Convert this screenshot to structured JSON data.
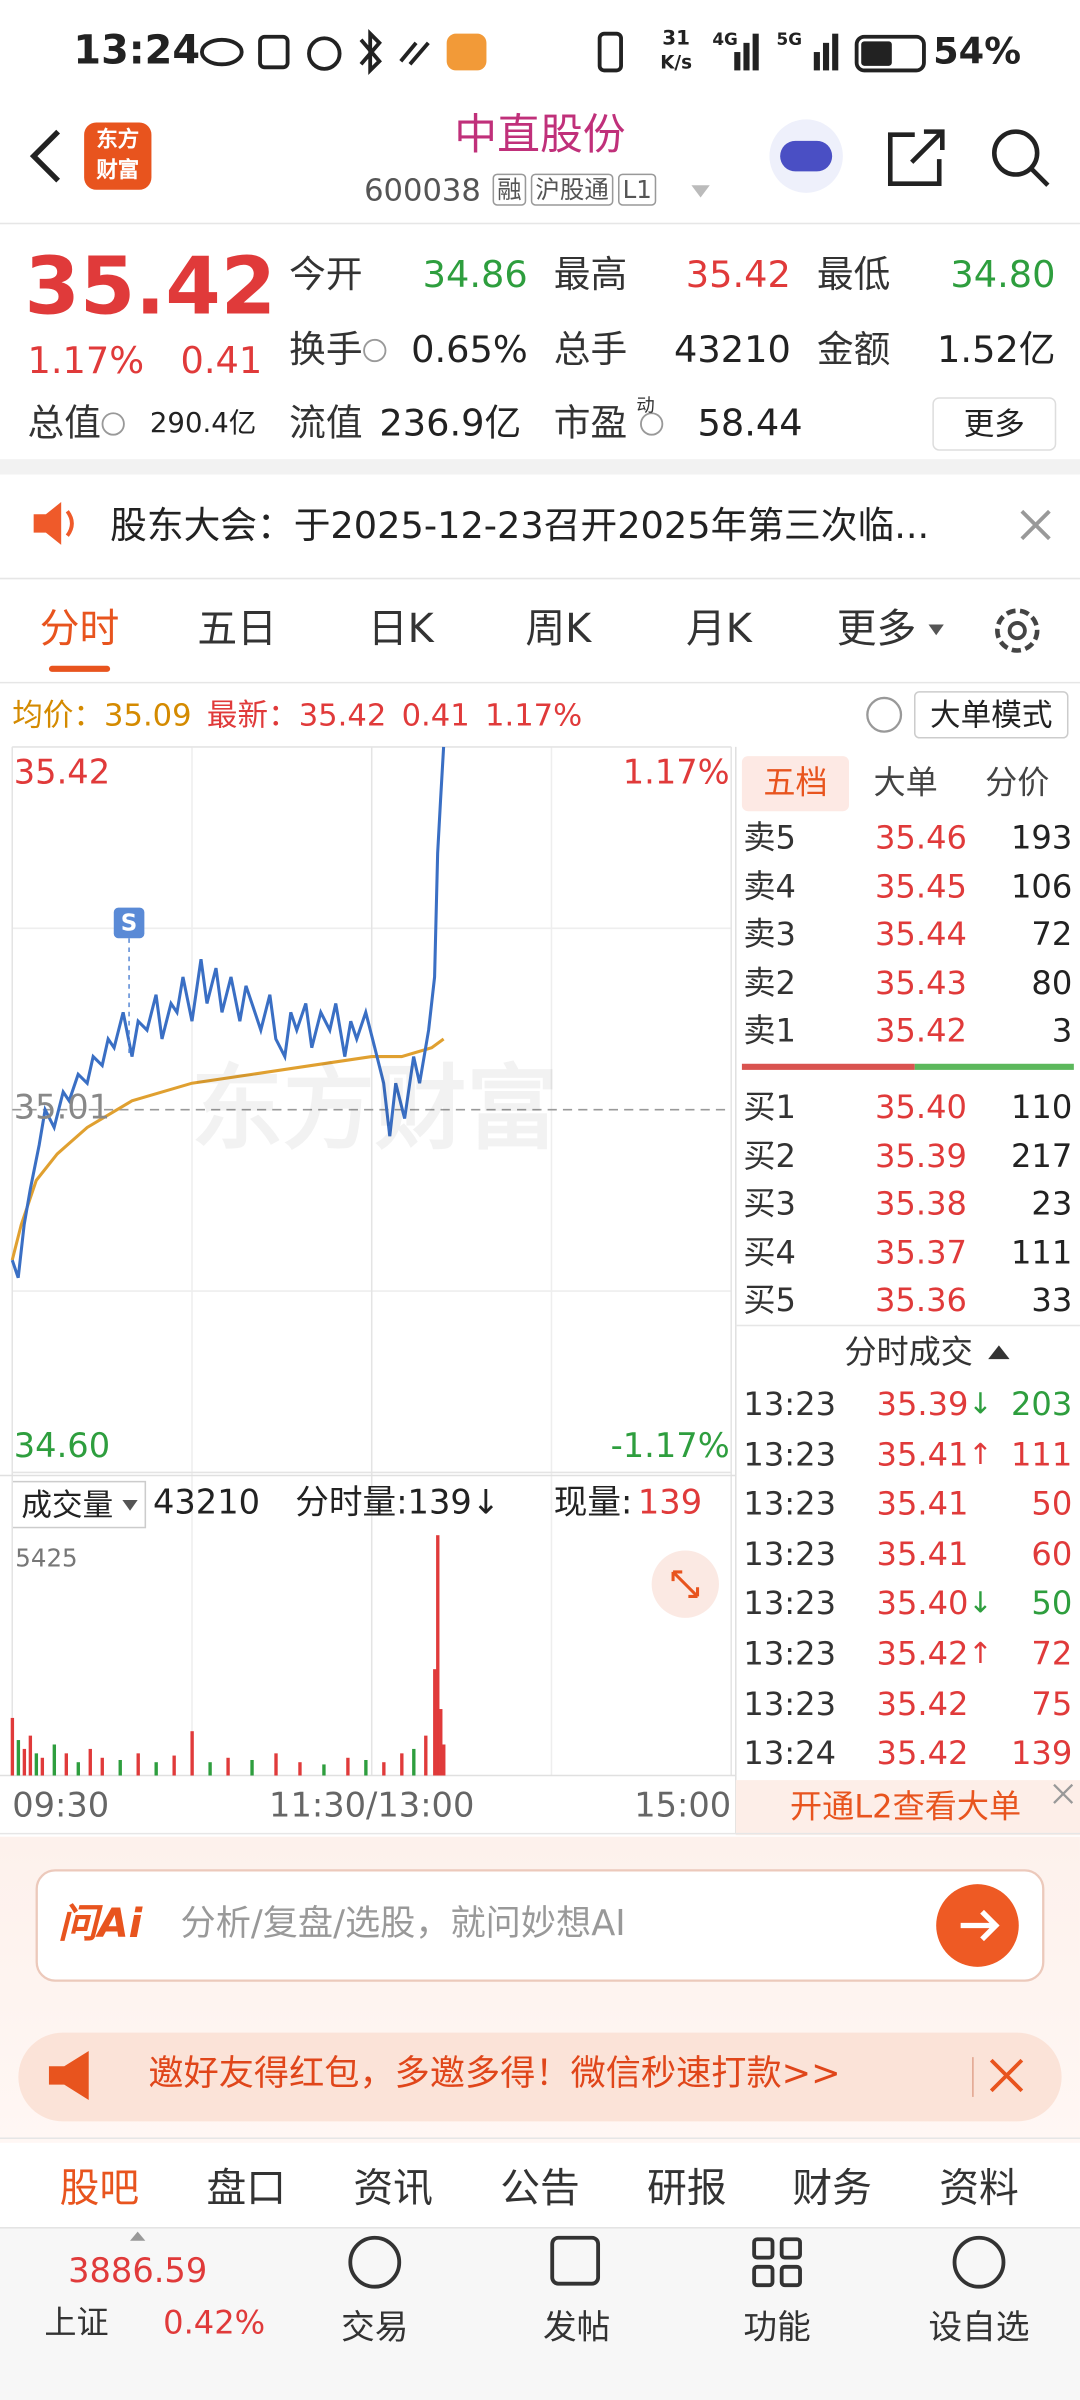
{
  "status_bar": {
    "time": "13:24",
    "speed": "31",
    "speed_unit": "K/s",
    "net_4g": "4G",
    "net_5g": "5G",
    "battery": "54%"
  },
  "header": {
    "logo": [
      "东方",
      "财富"
    ],
    "title": "中直股份",
    "code": "600038",
    "badges": [
      "融",
      "沪股通",
      "L1"
    ]
  },
  "quote": {
    "price": "35.42",
    "change_pct": "1.17%",
    "change": "0.41",
    "color": "#e03a3a",
    "rows": [
      [
        {
          "label": "今开",
          "value": "34.86",
          "color": "#2e9e3e"
        },
        {
          "label": "最高",
          "value": "35.42",
          "color": "#e03a3a"
        },
        {
          "label": "最低",
          "value": "34.80",
          "color": "#2e9e3e"
        }
      ],
      [
        {
          "label": "换手",
          "info": true,
          "value": "0.65%"
        },
        {
          "label": "总手",
          "value": "43210"
        },
        {
          "label": "金额",
          "value": "1.52亿"
        }
      ],
      [
        {
          "label": "总值",
          "info": true,
          "value": "290.4亿"
        },
        {
          "label": "流值",
          "value": "236.9亿"
        },
        {
          "label": "市盈",
          "sup": "动",
          "info": true,
          "value": "58.44"
        }
      ]
    ],
    "more": "更多"
  },
  "notice": {
    "text": "股东大会：于2025-12-23召开2025年第三次临..."
  },
  "tabs": {
    "items": [
      "分时",
      "五日",
      "日K",
      "周K",
      "月K",
      "更多"
    ],
    "active": 0
  },
  "info_bar": {
    "avg_label": "均价：",
    "avg": "35.09",
    "latest_label": "最新：",
    "latest": "35.42",
    "change": "0.41",
    "change_pct": "1.17%",
    "mode": "大单模式"
  },
  "intraday": {
    "watermark": "东方财富",
    "xlim": [
      0,
      240
    ],
    "xticks": [
      {
        "value": 0,
        "label": "09:30"
      },
      {
        "value": 120,
        "label": "11:30/13:00"
      },
      {
        "value": 240,
        "label": "15:00"
      }
    ],
    "ylim": [
      34.6,
      35.42
    ],
    "yticks": [
      {
        "value": 34.6,
        "label": "34.60"
      },
      {
        "value": 35.01,
        "label": "35.01"
      },
      {
        "value": 35.42,
        "label": "35.42"
      }
    ],
    "pct_labels": [
      "1.17%",
      "-1.17%"
    ],
    "price_color": "#3a6fc4",
    "avg_color": "#e0a030",
    "minutes": [
      0,
      2,
      4,
      6,
      9,
      11,
      14,
      17,
      19,
      22,
      25,
      27,
      30,
      32,
      34,
      37,
      40,
      42,
      45,
      48,
      50,
      53,
      55,
      57,
      60,
      63,
      65,
      68,
      70,
      73,
      76,
      78,
      80,
      83,
      86,
      88,
      91,
      93,
      95,
      98,
      100,
      103,
      106,
      108,
      111,
      113,
      115,
      118,
      121,
      124,
      126,
      128,
      131,
      134,
      136,
      139,
      141,
      142,
      143,
      144
    ],
    "price": [
      34.84,
      34.82,
      34.88,
      34.92,
      34.97,
      35.01,
      34.99,
      35.03,
      35.02,
      35.05,
      35.04,
      35.07,
      35.06,
      35.09,
      35.08,
      35.12,
      35.07,
      35.11,
      35.1,
      35.14,
      35.09,
      35.13,
      35.12,
      35.16,
      35.11,
      35.18,
      35.13,
      35.17,
      35.12,
      35.16,
      35.11,
      35.15,
      35.13,
      35.1,
      35.14,
      35.09,
      35.07,
      35.12,
      35.1,
      35.13,
      35.08,
      35.12,
      35.1,
      35.13,
      35.07,
      35.11,
      35.09,
      35.12,
      35.08,
      35.04,
      34.98,
      35.04,
      35.0,
      35.07,
      35.04,
      35.1,
      35.16,
      35.3,
      35.36,
      35.42
    ],
    "avg_minutes": [
      0,
      3,
      8,
      15,
      25,
      40,
      60,
      80,
      100,
      120,
      130,
      140,
      144
    ],
    "avg_price": [
      34.84,
      34.88,
      34.93,
      34.96,
      34.99,
      35.02,
      35.04,
      35.05,
      35.06,
      35.07,
      35.07,
      35.08,
      35.09
    ],
    "signal": {
      "label": "S",
      "minute": 39
    },
    "volume_header": {
      "label": "成交量",
      "total": "43210",
      "minute_vol": "分时量:139↓",
      "now_label": "现量:",
      "now": "139"
    },
    "vol_ylim": [
      0,
      5425
    ],
    "vol_ticks": [
      5425
    ],
    "volume_minutes": [
      0,
      2,
      4,
      6,
      8,
      10,
      14,
      18,
      22,
      26,
      30,
      36,
      42,
      48,
      54,
      60,
      66,
      72,
      80,
      88,
      96,
      104,
      112,
      118,
      124,
      130,
      134,
      138,
      141,
      142,
      143,
      144
    ],
    "volume": [
      1300,
      800,
      600,
      900,
      500,
      400,
      700,
      500,
      300,
      600,
      400,
      350,
      500,
      300,
      450,
      1000,
      300,
      400,
      350,
      500,
      300,
      250,
      400,
      350,
      300,
      500,
      600,
      900,
      2400,
      5425,
      1500,
      700
    ],
    "volume_colors": [
      "#e03a3a",
      "#2e9e3e",
      "#e03a3a",
      "#e03a3a",
      "#2e9e3e",
      "#e03a3a",
      "#2e9e3e",
      "#e03a3a",
      "#2e9e3e",
      "#e03a3a",
      "#e03a3a",
      "#2e9e3e",
      "#e03a3a",
      "#2e9e3e",
      "#e03a3a",
      "#e03a3a",
      "#2e9e3e",
      "#e03a3a",
      "#2e9e3e",
      "#e03a3a",
      "#e03a3a",
      "#2e9e3e",
      "#e03a3a",
      "#2e9e3e",
      "#e03a3a",
      "#e03a3a",
      "#2e9e3e",
      "#e03a3a",
      "#e03a3a",
      "#e03a3a",
      "#e03a3a",
      "#e03a3a"
    ]
  },
  "order_book": {
    "tabs": [
      "五档",
      "大单",
      "分价"
    ],
    "asks": [
      {
        "label": "卖5",
        "price": "35.46",
        "vol": "193"
      },
      {
        "label": "卖4",
        "price": "35.45",
        "vol": "106"
      },
      {
        "label": "卖3",
        "price": "35.44",
        "vol": "72"
      },
      {
        "label": "卖2",
        "price": "35.43",
        "vol": "80"
      },
      {
        "label": "卖1",
        "price": "35.42",
        "vol": "3"
      }
    ],
    "bids": [
      {
        "label": "买1",
        "price": "35.40",
        "vol": "110"
      },
      {
        "label": "买2",
        "price": "35.39",
        "vol": "217"
      },
      {
        "label": "买3",
        "price": "35.38",
        "vol": "23"
      },
      {
        "label": "买4",
        "price": "35.37",
        "vol": "111"
      },
      {
        "label": "买5",
        "price": "35.36",
        "vol": "33"
      }
    ],
    "trades_title": "分时成交",
    "trades": [
      {
        "time": "13:23",
        "price": "35.39",
        "arrow": "↓",
        "vol": "203",
        "color": "#2e9e3e"
      },
      {
        "time": "13:23",
        "price": "35.41",
        "arrow": "↑",
        "vol": "111",
        "color": "#e03a3a"
      },
      {
        "time": "13:23",
        "price": "35.41",
        "vol": "50",
        "color": "#e03a3a"
      },
      {
        "time": "13:23",
        "price": "35.41",
        "vol": "60",
        "color": "#e03a3a"
      },
      {
        "time": "13:23",
        "price": "35.40",
        "arrow": "↓",
        "vol": "50",
        "color": "#2e9e3e"
      },
      {
        "time": "13:23",
        "price": "35.42",
        "arrow": "↑",
        "vol": "72",
        "color": "#e03a3a"
      },
      {
        "time": "13:23",
        "price": "35.42",
        "vol": "75",
        "color": "#e03a3a"
      },
      {
        "time": "13:24",
        "price": "35.42",
        "vol": "139",
        "color": "#e03a3a"
      }
    ],
    "l2": "开通L2查看大单"
  },
  "ask_ai": {
    "logo": "问Ai",
    "placeholder": "分析/复盘/选股，就问妙想AI"
  },
  "banner": {
    "text": "邀好友得红包，多邀多得！微信秒速打款>>"
  },
  "bottom_tabs": {
    "items": [
      "股吧",
      "盘口",
      "资讯",
      "公告",
      "研报",
      "财务",
      "资料"
    ],
    "active": 0
  },
  "bottom_nav": {
    "index_value": "3886.59",
    "index_name": "上证",
    "index_pct": "0.42%",
    "items": [
      "交易",
      "发帖",
      "功能",
      "设自选"
    ]
  }
}
